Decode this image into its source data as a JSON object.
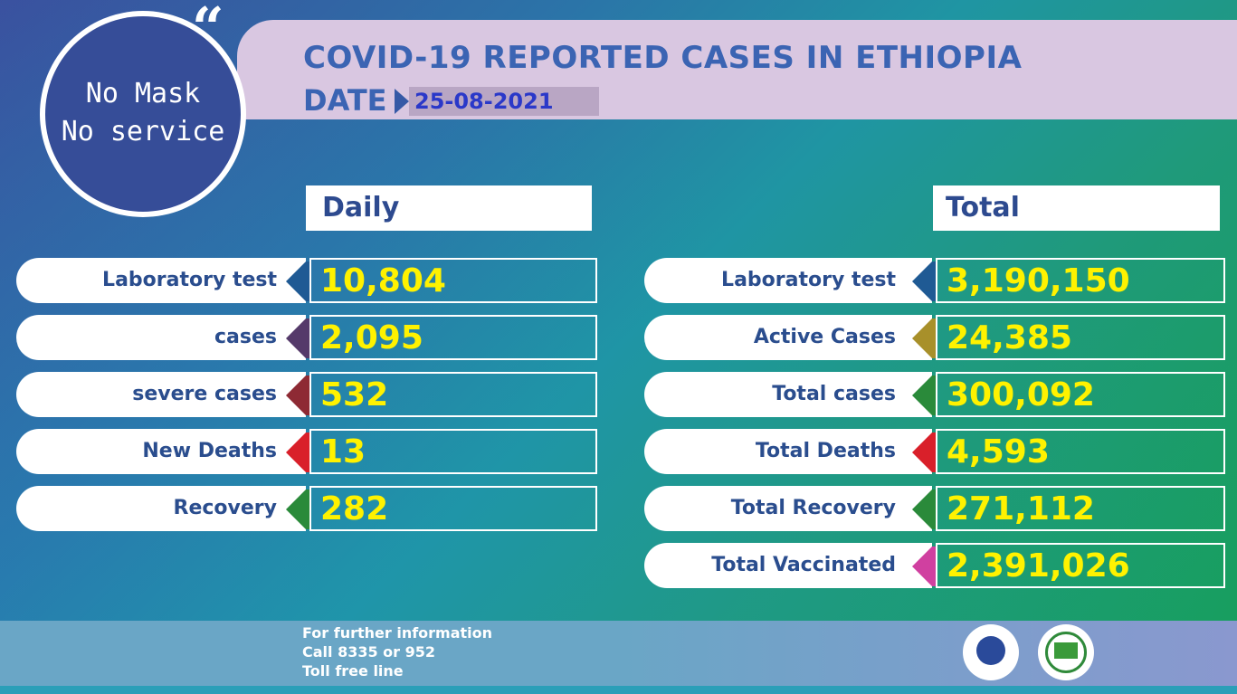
{
  "header": {
    "title": "COVID-19 REPORTED CASES IN ETHIOPIA",
    "date_label": "DATE",
    "date_value": "25-08-2021"
  },
  "badge": {
    "line1": "No Mask",
    "line2": "No service",
    "quote": "“"
  },
  "daily": {
    "heading": "Daily",
    "rows": [
      {
        "label": "Laboratory test",
        "value": "10,804",
        "color": "#1f5a94"
      },
      {
        "label": "cases",
        "value": "2,095",
        "color": "#553a6a"
      },
      {
        "label": "severe cases",
        "value": "532",
        "color": "#8e2a34"
      },
      {
        "label": "New Deaths",
        "value": "13",
        "color": "#d9202a"
      },
      {
        "label": "Recovery",
        "value": "282",
        "color": "#2a8a3a"
      }
    ]
  },
  "total": {
    "heading": "Total",
    "rows": [
      {
        "label": "Laboratory test",
        "value": "3,190,150",
        "color": "#1f5a94"
      },
      {
        "label": "Active Cases",
        "value": "24,385",
        "color": "#a8902a"
      },
      {
        "label": "Total cases",
        "value": "300,092",
        "color": "#2a8a3a"
      },
      {
        "label": "Total Deaths",
        "value": "4,593",
        "color": "#d9202a"
      },
      {
        "label": "Total Recovery",
        "value": "271,112",
        "color": "#2a8a3a"
      },
      {
        "label": "Total Vaccinated",
        "value": "2,391,026",
        "color": "#d040a0"
      }
    ]
  },
  "footer": {
    "line1": "For further information",
    "line2": "Call 8335 or 952",
    "line3": "Toll free line"
  },
  "icons": [
    "ministry-of-health-logo-icon",
    "public-health-institute-logo-icon"
  ]
}
